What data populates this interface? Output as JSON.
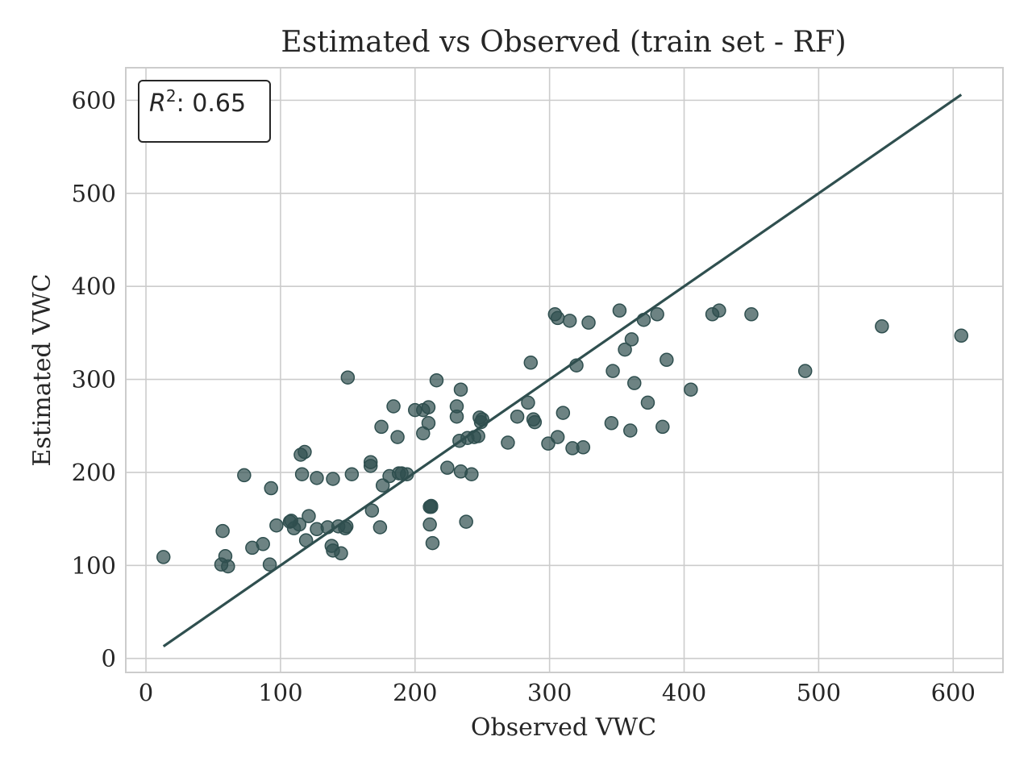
{
  "chart_data": {
    "type": "scatter",
    "title": "Estimated vs Observed (train set - RF)",
    "xlabel": "Observed VWC",
    "ylabel": "Estimated VWC",
    "xlim": [
      -15,
      637
    ],
    "ylim": [
      -15,
      635
    ],
    "xticks": [
      0,
      100,
      200,
      300,
      400,
      500,
      600
    ],
    "yticks": [
      0,
      100,
      200,
      300,
      400,
      500,
      600
    ],
    "grid": true,
    "annotation": {
      "label": "R",
      "superscript": "2",
      "value": ": 0.65",
      "placement": "top-left"
    },
    "reference_line": {
      "x": [
        13,
        606
      ],
      "y": [
        13,
        606
      ]
    },
    "colors": {
      "points": "#2f4f4f",
      "line": "#2f4f4f"
    },
    "series": [
      {
        "x": [
          13,
          56,
          57,
          59,
          61,
          73,
          79,
          87,
          92,
          93,
          97,
          107,
          108,
          110,
          114,
          115,
          116,
          118,
          119,
          121,
          127,
          127,
          135,
          138,
          139,
          139,
          143,
          145,
          148,
          149,
          150,
          153,
          167,
          167,
          168,
          174,
          175,
          176,
          181,
          184,
          187,
          188,
          190,
          194,
          200,
          206,
          206,
          210,
          210,
          211,
          211,
          212,
          212,
          213,
          216,
          224,
          231,
          231,
          233,
          234,
          234,
          238,
          239,
          242,
          244,
          247,
          248,
          249,
          250,
          269,
          276,
          284,
          286,
          288,
          289,
          299,
          304,
          306,
          306,
          310,
          315,
          317,
          320,
          325,
          329,
          346,
          347,
          352,
          356,
          360,
          361,
          363,
          370,
          373,
          380,
          384,
          387,
          405,
          421,
          426,
          450,
          490,
          547,
          606
        ],
        "y": [
          109,
          101,
          137,
          110,
          99,
          197,
          119,
          123,
          101,
          183,
          143,
          147,
          148,
          140,
          144,
          219,
          198,
          222,
          127,
          153,
          194,
          139,
          141,
          121,
          116,
          193,
          142,
          113,
          140,
          142,
          302,
          198,
          211,
          207,
          159,
          141,
          249,
          186,
          196,
          271,
          238,
          199,
          199,
          198,
          267,
          267,
          242,
          253,
          270,
          144,
          163,
          164,
          163,
          124,
          299,
          205,
          271,
          260,
          234,
          201,
          289,
          147,
          237,
          198,
          238,
          239,
          259,
          254,
          257,
          232,
          260,
          275,
          318,
          257,
          254,
          231,
          370,
          366,
          238,
          264,
          363,
          226,
          315,
          227,
          361,
          253,
          309,
          374,
          332,
          245,
          343,
          296,
          364,
          275,
          370,
          249,
          321,
          289,
          370,
          374,
          370,
          309,
          357,
          347
        ]
      }
    ]
  }
}
